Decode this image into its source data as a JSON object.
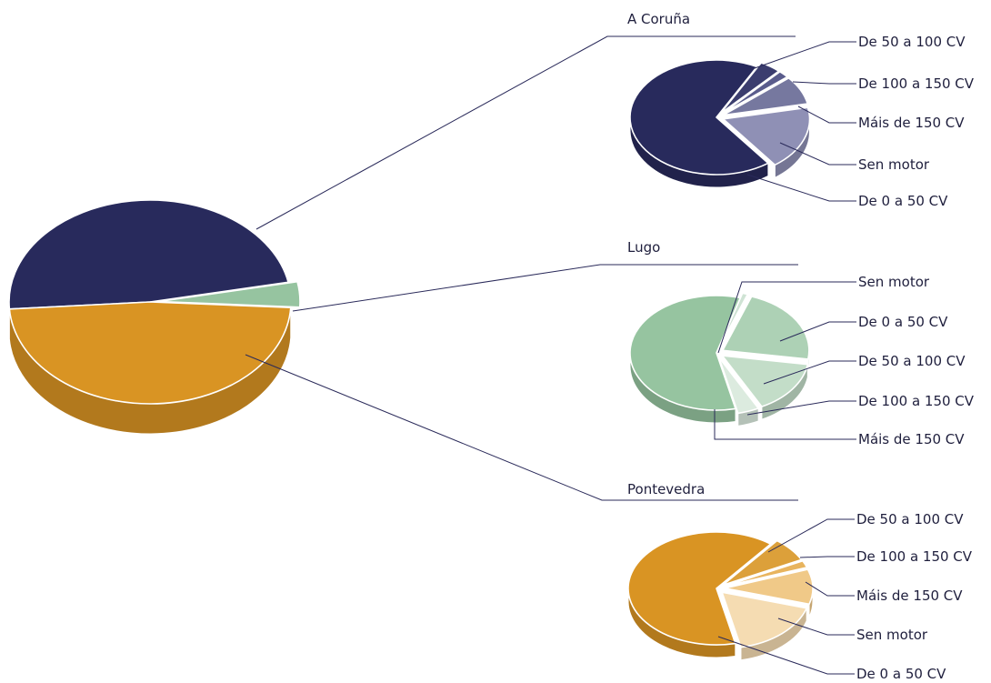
{
  "colors": {
    "coruna": "#282a5c",
    "lugo": "#96c4a0",
    "pontevedra": "#d99423",
    "line": "#2a2a5a",
    "text": "#1f1f3d"
  },
  "chart_data": [
    {
      "type": "pie",
      "title": "",
      "series": [
        {
          "label": "A Coruña",
          "value": 48,
          "color": "#282a5c"
        },
        {
          "label": "Lugo",
          "value": 4,
          "color": "#96c4a0"
        },
        {
          "label": "Pontevedra",
          "value": 48,
          "color": "#d99423"
        }
      ]
    },
    {
      "type": "pie",
      "title": "A Coruña",
      "series": [
        {
          "label": "De 50 a 100 CV",
          "value": 4,
          "color": "#3b3d6e"
        },
        {
          "label": "De 100 a 150 CV",
          "value": 2,
          "color": "#5a5c8c"
        },
        {
          "label": "Máis de 150 CV",
          "value": 8,
          "color": "#76789f"
        },
        {
          "label": "Sen motor",
          "value": 18,
          "color": "#8f90b5"
        },
        {
          "label": "De 0 a 50 CV",
          "value": 68,
          "color": "#282a5c"
        }
      ]
    },
    {
      "type": "pie",
      "title": "Lugo",
      "series": [
        {
          "label": "Sen motor",
          "value": 1,
          "color": "#cfe3d4"
        },
        {
          "label": "De 0 a 50 CV",
          "value": 22,
          "color": "#add1b5"
        },
        {
          "label": "De 50 a 100 CV",
          "value": 15,
          "color": "#c3ddc8"
        },
        {
          "label": "De 100 a 150 CV",
          "value": 4,
          "color": "#dcebdf"
        },
        {
          "label": "Máis de 150 CV",
          "value": 58,
          "color": "#96c4a0"
        }
      ]
    },
    {
      "type": "pie",
      "title": "Pontevedra",
      "series": [
        {
          "label": "De 50 a 100 CV",
          "value": 7,
          "color": "#dca03a"
        },
        {
          "label": "De 100 a 150 CV",
          "value": 2,
          "color": "#e8b45e"
        },
        {
          "label": "Máis de 150 CV",
          "value": 10,
          "color": "#f0c988"
        },
        {
          "label": "Sen motor",
          "value": 17,
          "color": "#f5dcb2"
        },
        {
          "label": "De 0 a 50 CV",
          "value": 64,
          "color": "#d99423"
        }
      ]
    }
  ]
}
